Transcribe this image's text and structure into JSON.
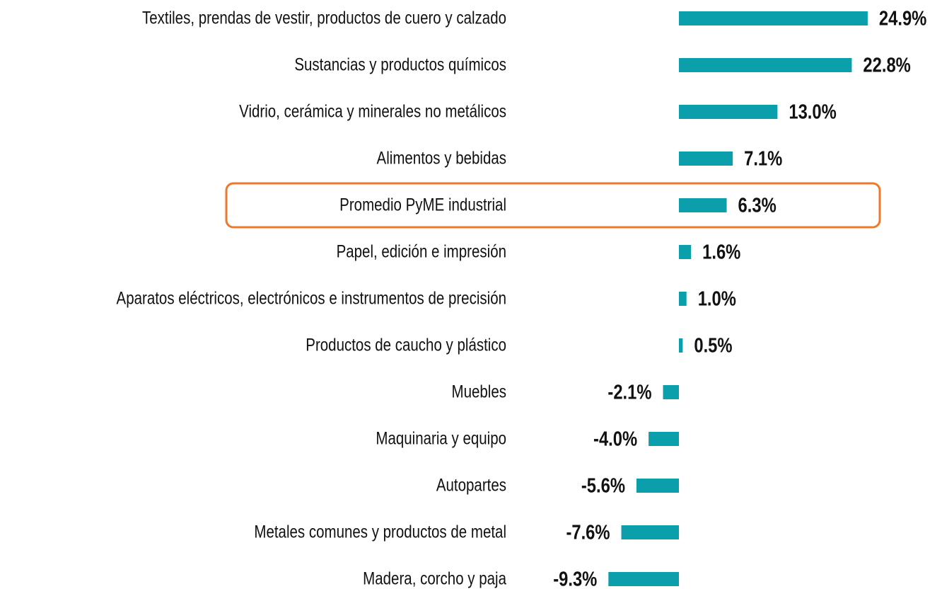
{
  "chart_data": {
    "type": "hbar",
    "categories": [
      "Textiles, prendas de vestir, productos de cuero y calzado",
      "Sustancias y productos químicos",
      "Vidrio, cerámica y minerales no metálicos",
      "Alimentos y bebidas",
      "Promedio PyME industrial",
      "Papel, edición e impresión",
      "Aparatos eléctricos, electrónicos e instrumentos de precisión",
      "Productos de caucho y plástico",
      "Muebles",
      "Maquinaria y equipo",
      "Autopartes",
      "Metales comunes y productos de metal",
      "Madera, corcho y paja"
    ],
    "values": [
      24.9,
      22.8,
      13.0,
      7.1,
      6.3,
      1.6,
      1.0,
      0.5,
      -2.1,
      -4.0,
      -5.6,
      -7.6,
      -9.3
    ],
    "value_labels": [
      "24.9%",
      "22.8%",
      "13.0%",
      "7.1%",
      "6.3%",
      "1.6%",
      "1.0%",
      "0.5%",
      "-2.1%",
      "-4.0%",
      "-5.6%",
      "-7.6%",
      "-9.3%"
    ],
    "color": "#0b9fac",
    "xlim": [
      -10,
      25
    ],
    "highlight": {
      "category_index": 4,
      "color": "#ec7a2c"
    }
  }
}
